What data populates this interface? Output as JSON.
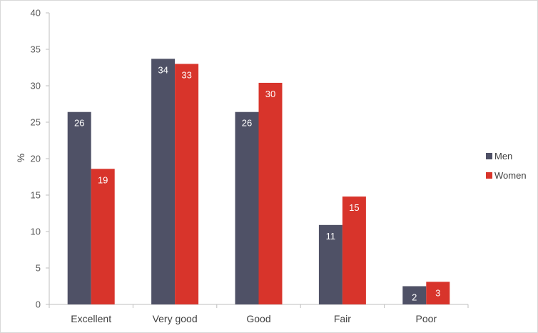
{
  "chart_data": {
    "type": "bar",
    "title": "",
    "xlabel": "",
    "ylabel": "%",
    "ylim": [
      0,
      40
    ],
    "yticks": [
      0,
      5,
      10,
      15,
      20,
      25,
      30,
      35,
      40
    ],
    "categories": [
      "Excellent",
      "Very good",
      "Good",
      "Fair",
      "Poor"
    ],
    "series": [
      {
        "name": "Men",
        "color": "#4f5166",
        "values": [
          26.4,
          33.7,
          26.4,
          10.9,
          2.5
        ],
        "labels": [
          "26",
          "34",
          "26",
          "11",
          "2"
        ]
      },
      {
        "name": "Women",
        "color": "#d8342b",
        "values": [
          18.6,
          33.0,
          30.4,
          14.8,
          3.1
        ],
        "labels": [
          "19",
          "33",
          "30",
          "15",
          "3"
        ]
      }
    ],
    "grid": false,
    "legend_position": "right"
  }
}
